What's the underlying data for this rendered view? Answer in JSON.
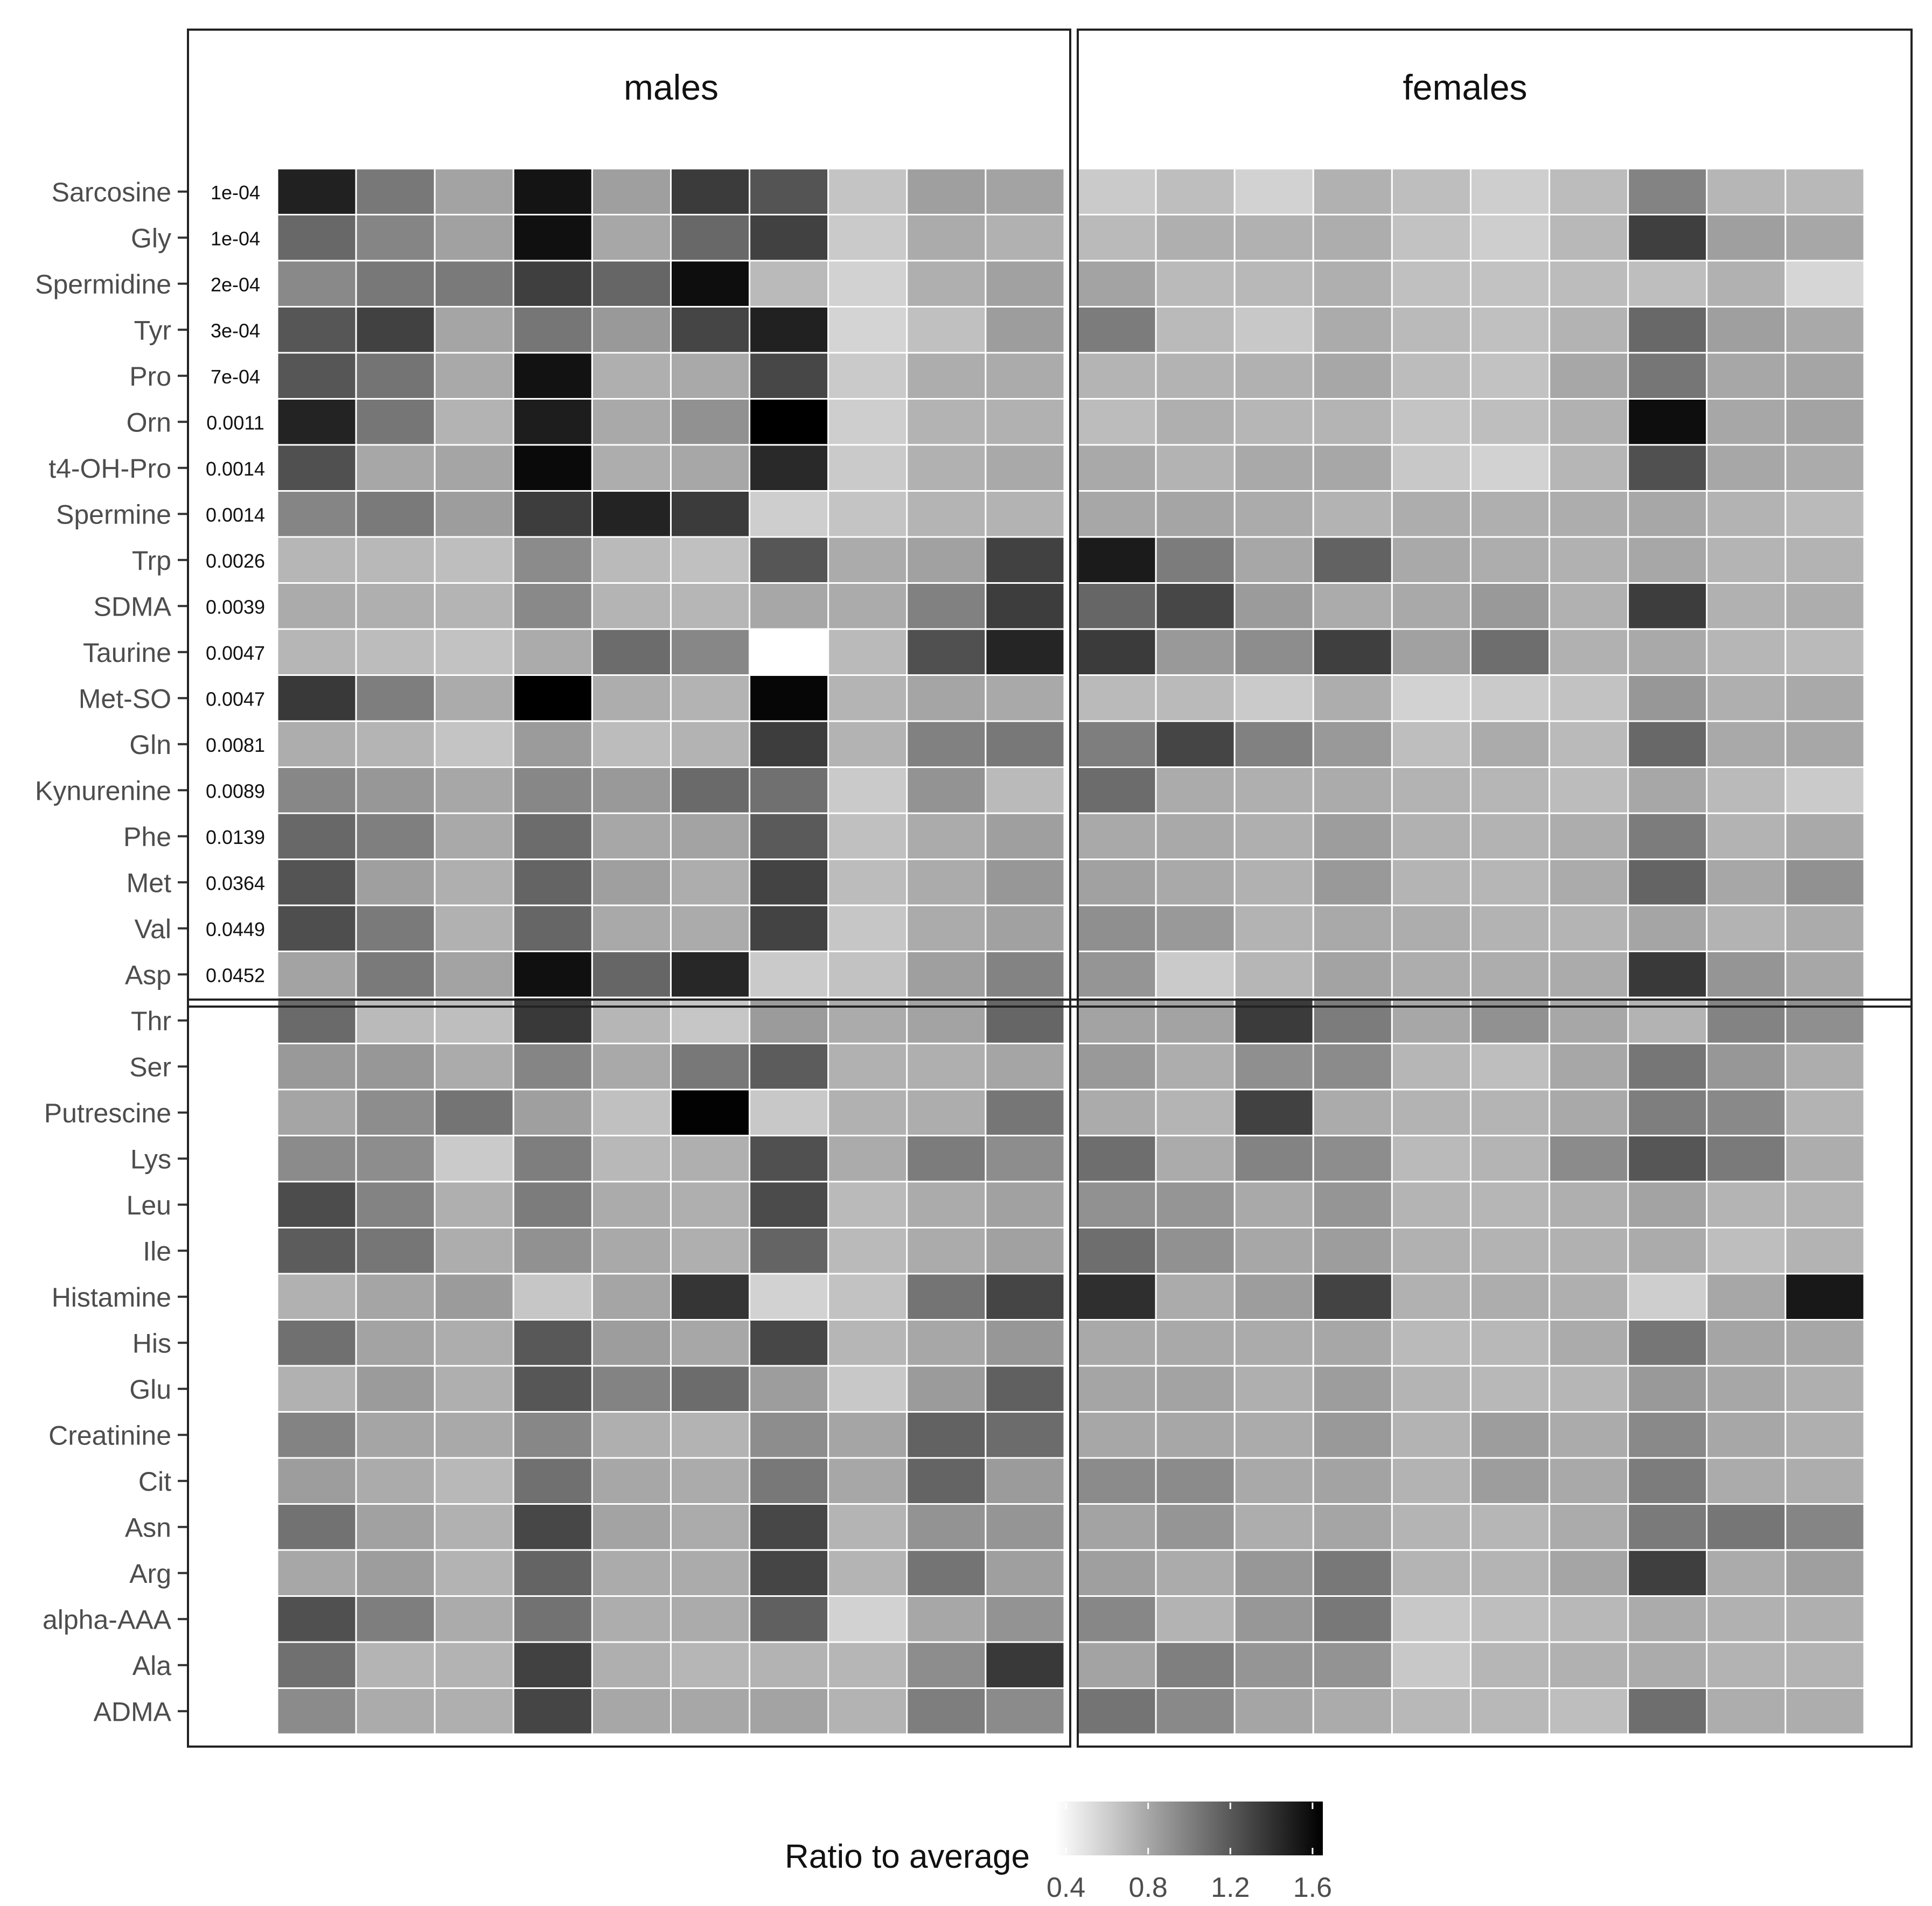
{
  "chart_data": {
    "type": "heatmap",
    "panels": [
      "males",
      "females"
    ],
    "rows": [
      "Sarcosine",
      "Gly",
      "Spermidine",
      "Tyr",
      "Pro",
      "Orn",
      "t4-OH-Pro",
      "Spermine",
      "Trp",
      "SDMA",
      "Taurine",
      "Met-SO",
      "Gln",
      "Kynurenine",
      "Phe",
      "Met",
      "Val",
      "Asp",
      "Thr",
      "Ser",
      "Putrescine",
      "Lys",
      "Leu",
      "Ile",
      "Histamine",
      "His",
      "Glu",
      "Creatinine",
      "Cit",
      "Asn",
      "Arg",
      "alpha-AAA",
      "Ala",
      "ADMA"
    ],
    "pvalues": [
      "1e-04",
      "1e-04",
      "2e-04",
      "3e-04",
      "7e-04",
      "0.0011",
      "0.0014",
      "0.0014",
      "0.0026",
      "0.0039",
      "0.0047",
      "0.0047",
      "0.0081",
      "0.0089",
      "0.0139",
      "0.0364",
      "0.0449",
      "0.0452"
    ],
    "significant_rows": 18,
    "columns_per_panel": 10,
    "legend": {
      "title": "Ratio to average",
      "ticks": [
        "0.4",
        "0.8",
        "1.2",
        "1.6"
      ],
      "range": [
        0.35,
        1.65
      ]
    },
    "values": [
      [
        1.48,
        1.04,
        0.82,
        1.55,
        0.84,
        1.35,
        1.22,
        0.65,
        0.84,
        0.82,
        0.62,
        0.68,
        0.58,
        0.75,
        0.68,
        0.6,
        0.69,
        0.98,
        0.72,
        0.71
      ],
      [
        1.12,
        0.97,
        0.83,
        1.57,
        0.8,
        1.12,
        1.32,
        0.62,
        0.78,
        0.75,
        0.7,
        0.76,
        0.75,
        0.77,
        0.66,
        0.6,
        0.71,
        1.33,
        0.84,
        0.8
      ],
      [
        0.95,
        1.04,
        1.03,
        1.33,
        1.13,
        1.58,
        0.7,
        0.58,
        0.76,
        0.83,
        0.82,
        0.7,
        0.71,
        0.76,
        0.67,
        0.66,
        0.69,
        0.68,
        0.75,
        0.56
      ],
      [
        1.21,
        1.32,
        0.81,
        1.05,
        0.87,
        1.3,
        1.48,
        0.57,
        0.67,
        0.85,
        1.02,
        0.7,
        0.63,
        0.78,
        0.7,
        0.67,
        0.74,
        1.12,
        0.84,
        0.79
      ],
      [
        1.21,
        1.06,
        0.79,
        1.56,
        0.76,
        0.79,
        1.29,
        0.62,
        0.77,
        0.78,
        0.73,
        0.74,
        0.75,
        0.8,
        0.69,
        0.66,
        0.8,
        1.05,
        0.8,
        0.81
      ],
      [
        1.47,
        1.05,
        0.74,
        1.5,
        0.79,
        0.91,
        1.72,
        0.6,
        0.74,
        0.75,
        0.69,
        0.76,
        0.72,
        0.73,
        0.65,
        0.68,
        0.75,
        1.58,
        0.8,
        0.82
      ],
      [
        1.24,
        0.8,
        0.81,
        1.6,
        0.77,
        0.8,
        1.44,
        0.62,
        0.75,
        0.79,
        0.79,
        0.74,
        0.79,
        0.8,
        0.63,
        0.58,
        0.72,
        1.24,
        0.8,
        0.78
      ],
      [
        0.97,
        1.03,
        0.85,
        1.34,
        1.47,
        1.35,
        0.6,
        0.65,
        0.73,
        0.74,
        0.8,
        0.81,
        0.78,
        0.74,
        0.77,
        0.76,
        0.77,
        0.8,
        0.74,
        0.7
      ],
      [
        0.72,
        0.71,
        0.68,
        0.94,
        0.7,
        0.67,
        1.21,
        0.78,
        0.83,
        1.32,
        1.51,
        1.02,
        0.8,
        1.15,
        0.79,
        0.77,
        0.75,
        0.8,
        0.73,
        0.74
      ],
      [
        0.78,
        0.76,
        0.73,
        0.95,
        0.73,
        0.72,
        0.8,
        0.78,
        0.99,
        1.34,
        1.13,
        1.29,
        0.86,
        0.78,
        0.79,
        0.87,
        0.75,
        1.34,
        0.75,
        0.77
      ],
      [
        0.72,
        0.69,
        0.66,
        0.78,
        1.1,
        0.96,
        0.35,
        0.7,
        1.24,
        1.46,
        1.35,
        0.87,
        0.93,
        1.33,
        0.83,
        1.09,
        0.75,
        0.79,
        0.72,
        0.7
      ],
      [
        1.36,
        1.01,
        0.78,
        1.65,
        0.77,
        0.74,
        1.62,
        0.73,
        0.81,
        0.79,
        0.7,
        0.7,
        0.62,
        0.77,
        0.58,
        0.62,
        0.66,
        0.88,
        0.76,
        0.79
      ],
      [
        0.77,
        0.73,
        0.65,
        0.86,
        0.69,
        0.74,
        1.34,
        0.74,
        0.99,
        1.04,
        1.01,
        1.3,
        0.99,
        0.87,
        0.68,
        0.78,
        0.7,
        1.12,
        0.79,
        0.8
      ],
      [
        0.96,
        0.88,
        0.8,
        0.96,
        0.87,
        1.11,
        1.08,
        0.62,
        0.9,
        0.7,
        1.1,
        0.78,
        0.76,
        0.78,
        0.74,
        0.72,
        0.69,
        0.8,
        0.7,
        0.62
      ],
      [
        1.12,
        1.0,
        0.79,
        1.1,
        0.8,
        0.82,
        1.19,
        0.67,
        0.78,
        0.84,
        0.79,
        0.79,
        0.76,
        0.85,
        0.75,
        0.74,
        0.77,
        1.02,
        0.74,
        0.79
      ],
      [
        1.22,
        0.84,
        0.76,
        1.14,
        0.84,
        0.77,
        1.31,
        0.69,
        0.78,
        0.88,
        0.83,
        0.79,
        0.75,
        0.87,
        0.73,
        0.72,
        0.78,
        1.14,
        0.8,
        0.91
      ],
      [
        1.25,
        1.03,
        0.75,
        1.13,
        0.79,
        0.78,
        1.31,
        0.64,
        0.78,
        0.83,
        0.92,
        0.87,
        0.74,
        0.79,
        0.77,
        0.74,
        0.73,
        0.81,
        0.74,
        0.78
      ],
      [
        0.82,
        1.03,
        0.82,
        1.57,
        1.13,
        1.45,
        0.62,
        0.66,
        0.84,
        0.98,
        0.89,
        0.62,
        0.72,
        0.82,
        0.77,
        0.77,
        0.78,
        1.36,
        0.89,
        0.8
      ],
      [
        1.11,
        0.7,
        0.68,
        1.36,
        0.72,
        0.64,
        0.86,
        0.78,
        0.82,
        1.13,
        0.82,
        0.82,
        1.35,
        1.02,
        0.8,
        0.91,
        0.8,
        0.74,
        0.98,
        0.92
      ],
      [
        0.87,
        0.88,
        0.78,
        0.97,
        0.79,
        1.04,
        1.18,
        0.75,
        0.76,
        0.81,
        0.87,
        0.77,
        0.92,
        0.94,
        0.72,
        0.68,
        0.8,
        1.05,
        0.88,
        0.77
      ],
      [
        0.81,
        0.93,
        1.06,
        0.84,
        0.67,
        1.64,
        0.63,
        0.75,
        0.77,
        1.05,
        0.78,
        0.73,
        1.32,
        0.78,
        0.74,
        0.73,
        0.79,
        1.01,
        0.95,
        0.74
      ],
      [
        0.94,
        0.93,
        0.62,
        1.01,
        0.71,
        0.76,
        1.24,
        0.78,
        1.02,
        0.93,
        1.09,
        0.78,
        0.98,
        0.93,
        0.7,
        0.73,
        0.94,
        1.21,
        1.03,
        0.77
      ],
      [
        1.26,
        0.98,
        0.76,
        1.02,
        0.78,
        0.76,
        1.27,
        0.7,
        0.78,
        0.83,
        0.91,
        0.89,
        0.79,
        0.89,
        0.73,
        0.72,
        0.76,
        0.82,
        0.73,
        0.74
      ],
      [
        1.18,
        1.05,
        0.77,
        0.91,
        0.79,
        0.76,
        1.14,
        0.7,
        0.78,
        0.83,
        1.09,
        0.91,
        0.8,
        0.85,
        0.75,
        0.74,
        0.75,
        0.78,
        0.68,
        0.74
      ],
      [
        0.75,
        0.81,
        0.86,
        0.64,
        0.81,
        1.38,
        0.58,
        0.66,
        1.06,
        1.3,
        1.41,
        0.78,
        0.85,
        1.31,
        0.75,
        0.77,
        0.76,
        0.6,
        0.8,
        1.53
      ],
      [
        1.08,
        0.82,
        0.77,
        1.2,
        0.85,
        0.8,
        1.29,
        0.72,
        0.8,
        0.88,
        0.79,
        0.79,
        0.78,
        0.8,
        0.7,
        0.71,
        0.78,
        1.05,
        0.81,
        0.8
      ],
      [
        0.75,
        0.86,
        0.76,
        1.21,
        0.98,
        1.1,
        0.85,
        0.63,
        0.86,
        1.16,
        0.81,
        0.82,
        0.76,
        0.85,
        0.73,
        0.71,
        0.72,
        0.87,
        0.8,
        0.76
      ],
      [
        0.98,
        0.81,
        0.79,
        0.96,
        0.76,
        0.74,
        0.93,
        0.81,
        1.15,
        1.1,
        0.8,
        0.8,
        0.78,
        0.87,
        0.74,
        0.85,
        0.78,
        0.95,
        0.8,
        0.76
      ],
      [
        0.85,
        0.78,
        0.71,
        1.08,
        0.8,
        0.78,
        1.04,
        0.8,
        1.14,
        0.86,
        0.94,
        0.94,
        0.79,
        0.82,
        0.74,
        0.85,
        0.79,
        1.02,
        0.78,
        0.77
      ],
      [
        1.07,
        0.83,
        0.75,
        1.29,
        0.82,
        0.78,
        1.29,
        0.73,
        0.9,
        0.89,
        0.82,
        0.89,
        0.77,
        0.81,
        0.73,
        0.72,
        0.78,
        1.03,
        1.05,
        0.97
      ],
      [
        0.8,
        0.85,
        0.74,
        1.14,
        0.78,
        0.78,
        1.3,
        0.73,
        1.06,
        0.84,
        0.84,
        0.78,
        0.88,
        1.04,
        0.73,
        0.73,
        0.81,
        1.33,
        0.78,
        0.84
      ],
      [
        1.24,
        1.01,
        0.78,
        1.07,
        0.77,
        0.78,
        1.16,
        0.58,
        0.8,
        0.9,
        0.96,
        0.74,
        0.88,
        1.04,
        0.63,
        0.68,
        0.71,
        0.78,
        0.75,
        0.76
      ],
      [
        1.08,
        0.73,
        0.74,
        1.32,
        0.76,
        0.72,
        0.74,
        0.72,
        0.93,
        1.36,
        0.82,
        1.0,
        0.89,
        0.9,
        0.63,
        0.72,
        0.75,
        0.78,
        0.74,
        0.74
      ],
      [
        0.94,
        0.78,
        0.76,
        1.3,
        0.8,
        0.8,
        0.82,
        0.74,
        1.01,
        0.94,
        1.06,
        0.95,
        0.81,
        0.78,
        0.71,
        0.71,
        0.68,
        1.09,
        0.77,
        0.77
      ]
    ]
  }
}
